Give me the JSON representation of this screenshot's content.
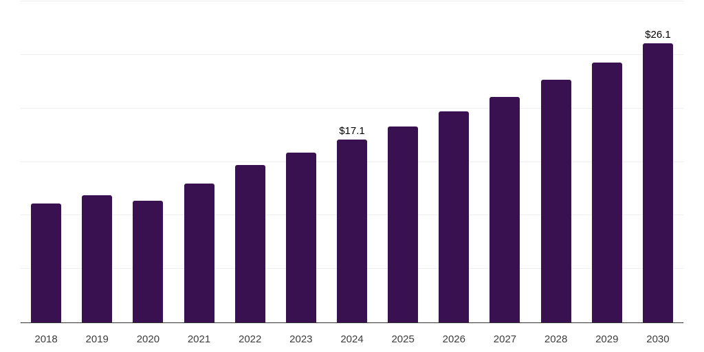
{
  "chart_data": {
    "type": "bar",
    "title": "",
    "xlabel": "",
    "ylabel": "",
    "categories": [
      "2018",
      "2019",
      "2020",
      "2021",
      "2022",
      "2023",
      "2024",
      "2025",
      "2026",
      "2027",
      "2028",
      "2029",
      "2030"
    ],
    "values": [
      11.1,
      11.9,
      11.4,
      13.0,
      14.7,
      15.9,
      17.1,
      18.3,
      19.7,
      21.1,
      22.7,
      24.3,
      26.1
    ],
    "point_labels": [
      "",
      "",
      "",
      "",
      "",
      "",
      "$17.1",
      "",
      "",
      "",
      "",
      "",
      "$26.1"
    ],
    "ylim": [
      0,
      30
    ],
    "gridline_interval": 5,
    "grid": true,
    "legend": false,
    "y_tick_labels_visible": false,
    "colors": {
      "bar": "#3a1150",
      "gridline": "#efefef",
      "axis_line": "#333333",
      "tick_label": "#3d3d3d",
      "data_label": "#000000",
      "background": "#ffffff"
    }
  }
}
